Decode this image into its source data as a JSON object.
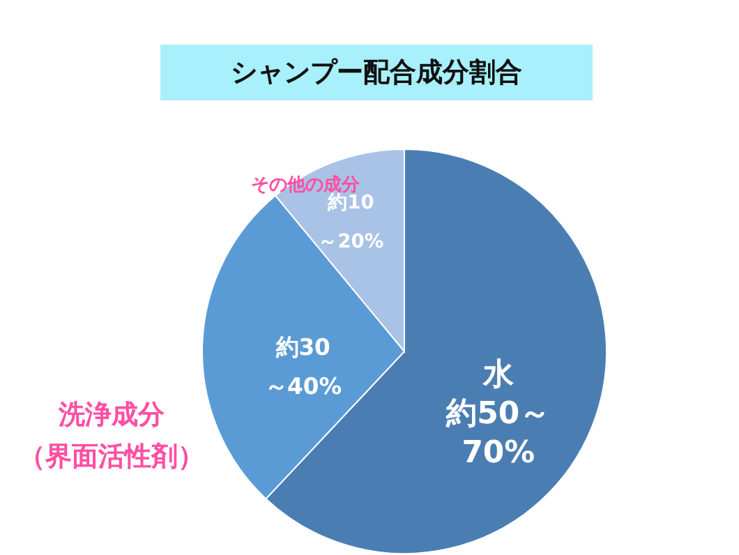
{
  "chart_data": {
    "type": "pie",
    "title": "シャンプー配合成分割合",
    "categories": [
      "水",
      "洗浄成分（界面活性剤）",
      "その他の成分"
    ],
    "values": [
      62,
      27,
      11
    ],
    "colors": [
      "#4a7eb3",
      "#5b9bd5",
      "#a9c3e6"
    ],
    "annotations": [
      "約50～\n70%",
      "約30\n～40%",
      "約10\n～20%"
    ]
  }
}
